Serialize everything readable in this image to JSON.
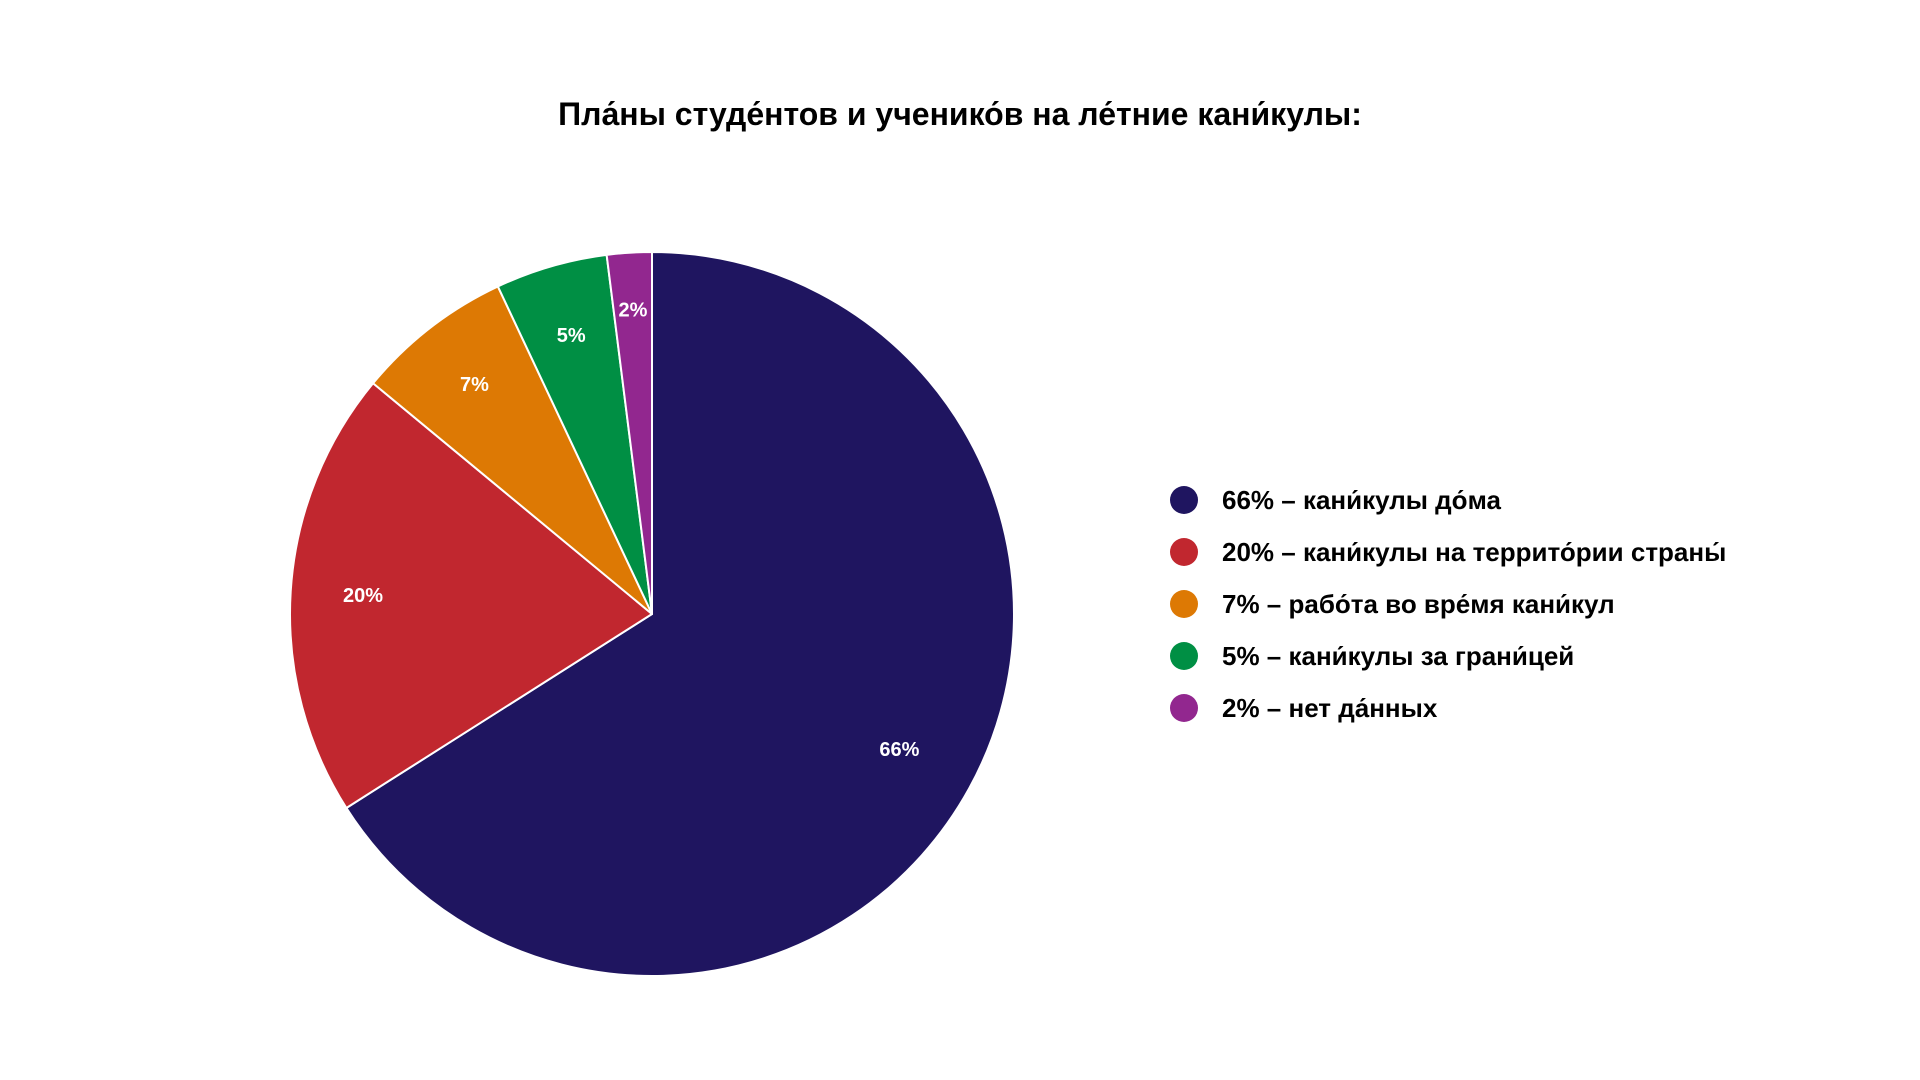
{
  "chart_data": {
    "type": "pie",
    "title": "Пла́ны студе́нтов и ученико́в на ле́тние кани́кулы:",
    "slices": [
      {
        "value": 66,
        "data_label": "66%",
        "legend": "66% – кани́кулы до́ма",
        "color": "#1f1560"
      },
      {
        "value": 20,
        "data_label": "20%",
        "legend": "20% – кани́кулы на террито́рии страны́",
        "color": "#c1272f"
      },
      {
        "value": 7,
        "data_label": "7%",
        "legend": "7% – рабо́та во вре́мя кани́кул",
        "color": "#dd7904"
      },
      {
        "value": 5,
        "data_label": "5%",
        "legend": "5% – кани́кулы за грани́цей",
        "color": "#008f44"
      },
      {
        "value": 2,
        "data_label": "2%",
        "legend": "2% – нет да́нных",
        "color": "#92278f"
      }
    ],
    "legend_position": "right",
    "start": "top",
    "direction": "clockwise"
  }
}
